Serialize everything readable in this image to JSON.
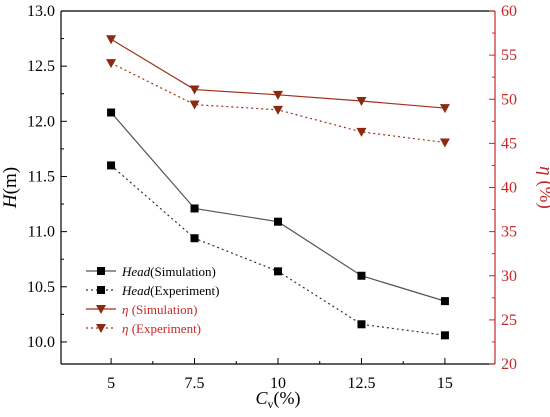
{
  "chart_data": {
    "type": "line",
    "x": [
      5,
      7.5,
      10,
      12.5,
      15
    ],
    "x_tick_labels": [
      "5",
      "7.5",
      "10",
      "12.5",
      "15"
    ],
    "xlim": [
      3.5,
      16.5
    ],
    "left_ylim": [
      9.8,
      13.0
    ],
    "left_y_ticks": [
      "10.0",
      "10.5",
      "11.0",
      "11.5",
      "12.0",
      "12.5",
      "13.0"
    ],
    "right_ylim": [
      20,
      60
    ],
    "right_y_ticks": [
      "20",
      "25",
      "30",
      "35",
      "40",
      "45",
      "50",
      "55",
      "60"
    ],
    "xlabel": "C",
    "xlabel_sub": "v",
    "xlabel_suffix": "(%)",
    "ylabel_left": "H",
    "ylabel_left_suffix": "(m)",
    "ylabel_right": "η",
    "ylabel_right_suffix": "(%)",
    "grid": false,
    "legend_position": "bottom-left",
    "series": [
      {
        "name_italic": "Head",
        "name_rest": "(Simulation)",
        "axis": "left",
        "values": [
          12.08,
          11.21,
          11.09,
          10.6,
          10.37
        ],
        "color": "#555555",
        "marker": "square",
        "dashed": false
      },
      {
        "name_italic": "Head",
        "name_rest": "(Experiment)",
        "axis": "left",
        "values": [
          11.6,
          10.94,
          10.64,
          10.16,
          10.06
        ],
        "color": "#333333",
        "marker": "square",
        "dashed": true
      },
      {
        "name_italic": "η",
        "name_rest": " (Simulation)",
        "axis": "right",
        "values": [
          56.8,
          51.1,
          50.5,
          49.8,
          49.0
        ],
        "color": "#a0301c",
        "marker": "triangle-down",
        "dashed": false
      },
      {
        "name_italic": "η",
        "name_rest": " (Experiment)",
        "axis": "right",
        "values": [
          54.1,
          49.4,
          48.8,
          46.3,
          45.1
        ],
        "color": "#a0301c",
        "marker": "triangle-down",
        "dashed": true
      }
    ],
    "colors": {
      "axis_left": "#000000",
      "axis_right": "#c62828",
      "marker_square": "#000000",
      "marker_triangle": "#8b2a12"
    }
  }
}
